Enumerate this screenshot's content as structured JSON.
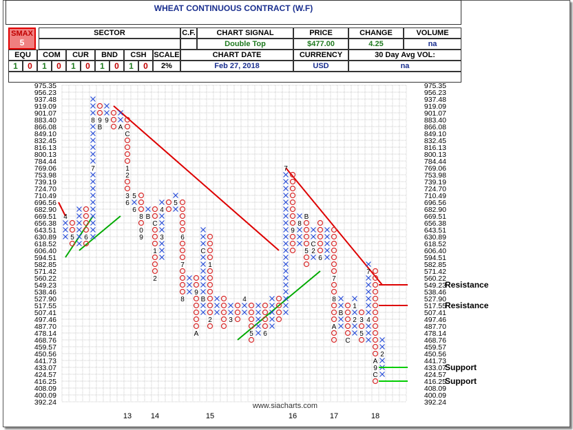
{
  "header": {
    "title": "WHEAT CONTINUOUS CONTRACT (W.F)",
    "smax_label": "SMAX",
    "smax_value": "5",
    "sector_label": "SECTOR",
    "sector_value": "",
    "cf_label": "C.F.",
    "signal_label": "CHART SIGNAL",
    "signal_value": "Double Top",
    "price_label": "PRICE",
    "price_value": "$477.00",
    "change_label": "CHANGE",
    "change_value": "4.25",
    "volume_label": "VOLUME",
    "volume_value": "na",
    "asset_labels": [
      "EQU",
      "COM",
      "CUR",
      "BND",
      "CSH"
    ],
    "asset_values": [
      [
        "1",
        "0"
      ],
      [
        "1",
        "0"
      ],
      [
        "1",
        "0"
      ],
      [
        "1",
        "0"
      ],
      [
        "1",
        "0"
      ]
    ],
    "scale_label": "SCALE",
    "scale_value": "2%",
    "date_label": "CHART DATE",
    "date_value": "Feb 27, 2018",
    "currency_label": "CURRENCY",
    "currency_value": "USD",
    "avgvol_label": "30 Day Avg VOL:",
    "avgvol_value": "na"
  },
  "chart_data": {
    "type": "point-and-figure",
    "title": "WHEAT CONTINUOUS CONTRACT (W.F)",
    "price_levels": [
      "975.35",
      "956.23",
      "937.48",
      "919.09",
      "901.07",
      "883.40",
      "866.08",
      "849.10",
      "832.45",
      "816.13",
      "800.13",
      "784.44",
      "769.06",
      "753.98",
      "739.19",
      "724.70",
      "710.49",
      "696.56",
      "682.90",
      "669.51",
      "656.38",
      "643.51",
      "630.89",
      "618.52",
      "606.40",
      "594.51",
      "582.85",
      "571.42",
      "560.22",
      "549.23",
      "538.46",
      "527.90",
      "517.55",
      "507.41",
      "497.46",
      "487.70",
      "478.14",
      "468.76",
      "459.57",
      "450.56",
      "441.73",
      "433.07",
      "424.57",
      "416.25",
      "408.09",
      "400.09",
      "392.24"
    ],
    "x_labels": [
      {
        "label": "13",
        "col": 9
      },
      {
        "label": "14",
        "col": 13
      },
      {
        "label": "15",
        "col": 21
      },
      {
        "label": "16",
        "col": 33
      },
      {
        "label": "17",
        "col": 39
      },
      {
        "label": "18",
        "col": 45
      }
    ],
    "columns": [
      {
        "type": "X",
        "top": "669.51",
        "bottom": "630.89",
        "marks": {
          "669.51": "4"
        }
      },
      {
        "type": "O",
        "top": "656.38",
        "bottom": "618.52",
        "marks": {
          "630.89": "5"
        }
      },
      {
        "type": "X",
        "top": "682.90",
        "bottom": "618.52"
      },
      {
        "type": "O",
        "top": "682.90",
        "bottom": "618.52",
        "marks": {
          "630.89": "6"
        }
      },
      {
        "type": "X",
        "top": "937.48",
        "bottom": "630.89",
        "marks": {
          "883.40": "8",
          "769.06": "7"
        }
      },
      {
        "type": "O",
        "top": "919.09",
        "bottom": "866.08",
        "marks": {
          "883.40": "9",
          "866.08": "B"
        }
      },
      {
        "type": "X",
        "top": "919.09",
        "bottom": "883.40",
        "marks": {
          "883.40": "9"
        }
      },
      {
        "type": "O",
        "top": "901.07",
        "bottom": "866.08"
      },
      {
        "type": "X",
        "top": "901.07",
        "bottom": "866.08",
        "marks": {
          "866.08": "A"
        }
      },
      {
        "type": "O",
        "top": "883.40",
        "bottom": "696.56",
        "marks": {
          "849.10": "C",
          "769.06": "1",
          "753.98": "2",
          "710.49": "3",
          "696.56": "6"
        }
      },
      {
        "type": "X",
        "top": "710.49",
        "bottom": "682.90",
        "marks": {
          "710.49": "5",
          "682.90": "6"
        }
      },
      {
        "type": "O",
        "top": "710.49",
        "bottom": "630.89",
        "marks": {
          "669.51": "8",
          "643.51": "0",
          "630.89": "9"
        }
      },
      {
        "type": "X",
        "top": "682.90",
        "bottom": "669.51",
        "marks": {
          "669.51": "B"
        }
      },
      {
        "type": "O",
        "top": "682.90",
        "bottom": "560.22",
        "marks": {
          "656.38": "C",
          "606.40": "1",
          "560.22": "2"
        }
      },
      {
        "type": "X",
        "top": "696.56",
        "bottom": "594.51",
        "marks": {
          "682.90": "4",
          "630.89": "3"
        }
      },
      {
        "type": "O",
        "top": "696.56",
        "bottom": "682.90"
      },
      {
        "type": "X",
        "top": "710.49",
        "bottom": "682.90",
        "marks": {
          "696.56": "5"
        }
      },
      {
        "type": "O",
        "top": "696.56",
        "bottom": "527.90",
        "marks": {
          "630.89": "6",
          "582.85": "7",
          "527.90": "8"
        }
      },
      {
        "type": "X",
        "top": "560.22",
        "bottom": "538.46"
      },
      {
        "type": "O",
        "top": "560.22",
        "bottom": "478.14",
        "marks": {
          "538.46": "9",
          "478.14": "A"
        }
      },
      {
        "type": "X",
        "top": "643.51",
        "bottom": "507.41",
        "marks": {
          "606.40": "C",
          "527.90": "B"
        }
      },
      {
        "type": "O",
        "top": "630.89",
        "bottom": "487.70",
        "marks": {
          "582.85": "1",
          "497.46": "2"
        }
      },
      {
        "type": "X",
        "top": "527.90",
        "bottom": "507.41"
      },
      {
        "type": "O",
        "top": "527.90",
        "bottom": "487.70"
      },
      {
        "type": "X",
        "top": "517.55",
        "bottom": "497.46",
        "marks": {
          "497.46": "3"
        }
      },
      {
        "type": "O",
        "top": "517.55",
        "bottom": "497.46"
      },
      {
        "type": "X",
        "top": "527.90",
        "bottom": "507.41",
        "marks": {
          "527.90": "4"
        }
      },
      {
        "type": "O",
        "top": "517.55",
        "bottom": "468.76",
        "marks": {
          "478.14": "5"
        }
      },
      {
        "type": "X",
        "top": "517.55",
        "bottom": "478.14"
      },
      {
        "type": "O",
        "top": "517.55",
        "bottom": "478.14",
        "marks": {
          "478.14": "6"
        }
      },
      {
        "type": "X",
        "top": "527.90",
        "bottom": "487.70"
      },
      {
        "type": "O",
        "top": "527.90",
        "bottom": "497.46"
      },
      {
        "type": "X",
        "top": "769.06",
        "bottom": "507.41",
        "marks": {
          "769.06": "7"
        }
      },
      {
        "type": "O",
        "top": "753.98",
        "bottom": "606.40",
        "marks": {
          "643.51": "9"
        }
      },
      {
        "type": "X",
        "top": "669.51",
        "bottom": "618.52",
        "marks": {
          "656.38": "8"
        }
      },
      {
        "type": "O",
        "top": "669.51",
        "bottom": "582.85",
        "marks": {
          "669.51": "B",
          "606.40": "5"
        }
      },
      {
        "type": "X",
        "top": "643.51",
        "bottom": "594.51",
        "marks": {
          "618.52": "C",
          "606.40": "2"
        }
      },
      {
        "type": "O",
        "top": "656.38",
        "bottom": "594.51",
        "marks": {
          "594.51": "6"
        }
      },
      {
        "type": "X",
        "top": "643.51",
        "bottom": "594.51"
      },
      {
        "type": "O",
        "top": "643.51",
        "bottom": "468.76",
        "marks": {
          "560.22": "7",
          "527.90": "8",
          "487.70": "A"
        }
      },
      {
        "type": "X",
        "top": "527.90",
        "bottom": "487.70",
        "marks": {
          "507.41": "B"
        }
      },
      {
        "type": "O",
        "top": "517.55",
        "bottom": "468.76",
        "marks": {
          "468.76": "C"
        }
      },
      {
        "type": "X",
        "top": "527.90",
        "bottom": "478.14",
        "marks": {
          "517.55": "1",
          "497.46": "2"
        }
      },
      {
        "type": "O",
        "top": "507.41",
        "bottom": "468.76",
        "marks": {
          "497.46": "3",
          "478.14": "5"
        }
      },
      {
        "type": "X",
        "top": "582.85",
        "bottom": "468.76",
        "marks": {
          "571.42": "7",
          "497.46": "4"
        }
      },
      {
        "type": "O",
        "top": "571.42",
        "bottom": "416.25",
        "marks": {
          "433.07": "9",
          "441.73": "A",
          "424.57": "C"
        }
      },
      {
        "type": "X",
        "top": "468.76",
        "bottom": "424.57",
        "marks": {
          "450.56": "2"
        }
      }
    ],
    "trendlines": [
      {
        "kind": "support",
        "from": {
          "col": 0,
          "level": "594.51"
        },
        "to": {
          "col": 4,
          "level": "669.51"
        },
        "color": "#00aa00"
      },
      {
        "kind": "support",
        "from": {
          "col": 2,
          "level": "606.40"
        },
        "to": {
          "col": 8,
          "level": "669.51"
        },
        "color": "#00aa00"
      },
      {
        "kind": "resistance",
        "from": {
          "col": -1,
          "level": "696.56"
        },
        "to": {
          "col": 0,
          "level": "669.51"
        },
        "color": "#dd0000"
      },
      {
        "kind": "resistance",
        "from": {
          "col": 7,
          "level": "919.09"
        },
        "to": {
          "col": 31,
          "level": "606.40"
        },
        "color": "#dd0000"
      },
      {
        "kind": "support",
        "from": {
          "col": 25,
          "level": "468.76"
        },
        "to": {
          "col": 37,
          "level": "571.42"
        },
        "color": "#00aa00"
      },
      {
        "kind": "resistance",
        "from": {
          "col": 32,
          "level": "769.06"
        },
        "to": {
          "col": 46,
          "level": "549.23"
        },
        "color": "#dd0000"
      }
    ],
    "annotations": [
      {
        "text": "Resistance",
        "level": "549.23",
        "color": "#dd0000"
      },
      {
        "text": "Resistance",
        "level": "517.55",
        "color": "#dd0000"
      },
      {
        "text": "Support",
        "level": "433.07",
        "color": "#00cc00"
      },
      {
        "text": "Support",
        "level": "416.25",
        "color": "#00cc00"
      }
    ],
    "watermark": "www.siacharts.com"
  }
}
